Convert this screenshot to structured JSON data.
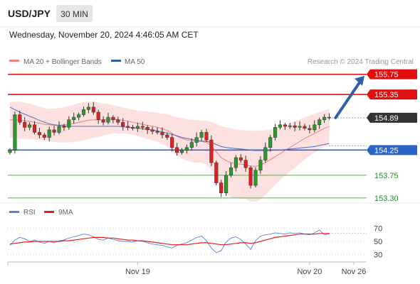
{
  "header": {
    "symbol": "USD/JPY",
    "timeframe": "30 MIN",
    "datetime": "Wednesday, November 20, 2024 4:46:05 AM CET"
  },
  "legend": {
    "ma20": "MA 20 + Bollinger Bands",
    "ma50": "MA 50",
    "credit": "Research © 2024 Trading Central"
  },
  "colors": {
    "resistance": "#e01010",
    "support": "#2a64c8",
    "target": "#2a8a2a",
    "ma20": "#f08080",
    "ma50": "#4a6fc0",
    "band": "#fde0e0",
    "up": "#2a9a2a",
    "down": "#e02020",
    "rsi": "#5b7fd0",
    "rsi_ma": "#e02020",
    "arrow": "#2f5fa8",
    "current": "#333333"
  },
  "chart_data": [
    {
      "type": "candlestick",
      "ylim": [
        153.2,
        155.9
      ],
      "levels": [
        {
          "label": "155.75",
          "value": 155.75,
          "kind": "resistance"
        },
        {
          "label": "155.35",
          "value": 155.35,
          "kind": "resistance"
        },
        {
          "label": "154.89",
          "value": 154.89,
          "kind": "current"
        },
        {
          "label": "154.25",
          "value": 154.25,
          "kind": "support"
        },
        {
          "label": "153.75",
          "value": 153.75,
          "kind": "target"
        },
        {
          "label": "153.30",
          "value": 153.3,
          "kind": "target"
        }
      ],
      "x_ticks": [
        {
          "label": "Nov 19",
          "index": 26
        },
        {
          "label": "Nov 20",
          "index": 61
        },
        {
          "label": "Nov 26",
          "index": 70
        }
      ],
      "candles_count": 66,
      "close_path": [
        154.25,
        154.95,
        154.8,
        154.7,
        154.75,
        154.6,
        154.55,
        154.5,
        154.65,
        154.6,
        154.72,
        154.7,
        154.85,
        154.9,
        154.95,
        155.05,
        155.1,
        155.0,
        154.85,
        154.8,
        154.9,
        154.85,
        154.8,
        154.72,
        154.7,
        154.68,
        154.72,
        154.7,
        154.65,
        154.62,
        154.6,
        154.55,
        154.5,
        154.3,
        154.2,
        154.25,
        154.3,
        154.4,
        154.5,
        154.6,
        154.45,
        154.0,
        153.6,
        153.4,
        153.75,
        153.9,
        154.1,
        154.05,
        153.9,
        153.55,
        153.85,
        154.05,
        154.3,
        154.5,
        154.7,
        154.75,
        154.72,
        154.73,
        154.7,
        154.72,
        154.68,
        154.65,
        154.75,
        154.85,
        154.9,
        154.89
      ],
      "ma20": [
        154.85,
        154.85,
        154.84,
        154.83,
        154.82,
        154.8,
        154.78,
        154.76,
        154.75,
        154.74,
        154.74,
        154.75,
        154.76,
        154.78,
        154.8,
        154.82,
        154.84,
        154.85,
        154.85,
        154.85,
        154.86,
        154.86,
        154.85,
        154.84,
        154.82,
        154.8,
        154.78,
        154.76,
        154.74,
        154.72,
        154.7,
        154.67,
        154.64,
        154.58,
        154.52,
        154.48,
        154.45,
        154.43,
        154.42,
        154.42,
        154.4,
        154.33,
        154.22,
        154.1,
        154.04,
        154.0,
        153.98,
        153.97,
        153.96,
        153.93,
        153.93,
        153.95,
        154.0,
        154.06,
        154.12,
        154.18,
        154.24,
        154.3,
        154.36,
        154.42,
        154.48,
        154.53,
        154.58,
        154.63,
        154.68,
        154.72
      ],
      "ma50": [
        155.1,
        155.05,
        155.0,
        154.96,
        154.92,
        154.88,
        154.84,
        154.8,
        154.77,
        154.75,
        154.74,
        154.73,
        154.72,
        154.72,
        154.72,
        154.72,
        154.72,
        154.72,
        154.72,
        154.72,
        154.72,
        154.72,
        154.72,
        154.71,
        154.7,
        154.69,
        154.68,
        154.67,
        154.66,
        154.65,
        154.63,
        154.61,
        154.59,
        154.56,
        154.53,
        154.5,
        154.48,
        154.46,
        154.44,
        154.43,
        154.42,
        154.4,
        154.36,
        154.32,
        154.3,
        154.29,
        154.28,
        154.27,
        154.26,
        154.25,
        154.24,
        154.24,
        154.24,
        154.24,
        154.25,
        154.25,
        154.26,
        154.27,
        154.28,
        154.29,
        154.3,
        154.31,
        154.32,
        154.34,
        154.36,
        154.38
      ],
      "band_width": [
        0.35,
        0.36,
        0.37,
        0.36,
        0.35,
        0.34,
        0.33,
        0.32,
        0.32,
        0.33,
        0.34,
        0.35,
        0.36,
        0.37,
        0.38,
        0.38,
        0.37,
        0.36,
        0.34,
        0.32,
        0.3,
        0.28,
        0.27,
        0.26,
        0.25,
        0.25,
        0.25,
        0.26,
        0.27,
        0.28,
        0.29,
        0.3,
        0.32,
        0.35,
        0.38,
        0.4,
        0.41,
        0.42,
        0.42,
        0.42,
        0.43,
        0.48,
        0.55,
        0.62,
        0.66,
        0.68,
        0.68,
        0.68,
        0.68,
        0.7,
        0.7,
        0.68,
        0.64,
        0.6,
        0.56,
        0.52,
        0.5,
        0.48,
        0.46,
        0.44,
        0.42,
        0.4,
        0.38,
        0.37,
        0.36,
        0.35
      ],
      "arrow": {
        "from_index": 66,
        "from_value": 154.89,
        "to_value": 155.72
      }
    },
    {
      "type": "line",
      "name": "RSI",
      "legend": [
        "RSI",
        "9MA"
      ],
      "ylim": [
        20,
        80
      ],
      "y_ticks": [
        70,
        50,
        30
      ],
      "rsi": [
        44,
        52,
        56,
        54,
        50,
        52,
        49,
        47,
        50,
        48,
        51,
        52,
        55,
        57,
        59,
        61,
        60,
        57,
        53,
        52,
        55,
        53,
        51,
        50,
        50,
        49,
        51,
        50,
        48,
        46,
        45,
        44,
        42,
        40,
        44,
        46,
        48,
        52,
        56,
        58,
        51,
        40,
        33,
        36,
        49,
        55,
        57,
        53,
        46,
        38,
        51,
        58,
        60,
        61,
        63,
        62,
        61,
        63,
        62,
        63,
        61,
        60,
        63,
        67,
        60,
        61
      ],
      "rsi_ma": [
        46,
        47,
        48,
        49,
        49,
        50,
        50,
        50,
        50,
        50,
        50,
        51,
        51,
        52,
        53,
        54,
        55,
        56,
        56,
        56,
        55,
        55,
        54,
        53,
        52,
        52,
        51,
        51,
        50,
        49,
        48,
        47,
        46,
        45,
        45,
        45,
        45,
        46,
        47,
        48,
        48,
        47,
        46,
        45,
        45,
        46,
        47,
        48,
        48,
        47,
        48,
        50,
        52,
        54,
        56,
        57,
        58,
        59,
        60,
        61,
        61,
        61,
        61,
        62,
        62,
        62
      ]
    }
  ]
}
